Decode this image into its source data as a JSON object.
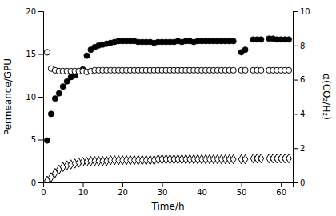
{
  "chart_data": {
    "type": "scatter",
    "xlabel": "Time/h",
    "ylabel": "Permeance/GPU",
    "y2label": "α(CO₂/H₂)",
    "xlim": [
      0,
      63
    ],
    "xticks": [
      0,
      10,
      20,
      30,
      40,
      50,
      60
    ],
    "ylim": [
      0,
      20
    ],
    "yticks": [
      0,
      5,
      10,
      15,
      20
    ],
    "y2lim": [
      0,
      10
    ],
    "y2ticks": [
      0,
      2,
      4,
      6,
      8,
      10
    ],
    "grid": false,
    "series": [
      {
        "marker": "circle",
        "color": "#000000",
        "x": [
          1,
          2,
          3,
          4,
          5,
          6,
          7,
          8,
          9,
          10,
          11,
          12,
          13,
          14,
          15,
          16,
          17,
          18,
          19,
          20,
          21,
          22,
          23,
          24,
          25,
          26,
          27,
          28,
          29,
          30,
          31,
          32,
          33,
          34,
          35,
          36,
          37,
          38,
          39,
          40,
          41,
          42,
          43,
          44,
          45,
          46,
          47,
          48,
          50,
          51,
          53,
          54,
          55,
          57,
          58,
          59,
          60,
          61,
          62
        ],
        "values": [
          4.9,
          8.0,
          9.8,
          10.4,
          11.2,
          11.8,
          12.3,
          12.5,
          13.0,
          13.2,
          14.8,
          15.5,
          15.8,
          16.0,
          16.1,
          16.2,
          16.3,
          16.4,
          16.5,
          16.5,
          16.5,
          16.5,
          16.5,
          16.4,
          16.4,
          16.4,
          16.4,
          16.3,
          16.4,
          16.4,
          16.4,
          16.4,
          16.4,
          16.5,
          16.4,
          16.5,
          16.5,
          16.4,
          16.5,
          16.5,
          16.5,
          16.5,
          16.5,
          16.5,
          16.5,
          16.5,
          16.5,
          16.5,
          15.2,
          15.5,
          16.7,
          16.7,
          16.7,
          16.8,
          16.8,
          16.7,
          16.7,
          16.7,
          16.7
        ]
      },
      {
        "marker": "open-circle",
        "color": "#000000",
        "x": [
          1,
          2,
          3,
          4,
          5,
          6,
          7,
          8,
          9,
          10,
          11,
          12,
          13,
          14,
          15,
          16,
          17,
          18,
          19,
          20,
          21,
          22,
          23,
          24,
          25,
          26,
          27,
          28,
          29,
          30,
          31,
          32,
          33,
          34,
          35,
          36,
          37,
          38,
          39,
          40,
          41,
          42,
          43,
          44,
          45,
          46,
          47,
          48,
          50,
          51,
          53,
          54,
          55,
          57,
          58,
          59,
          60,
          61,
          62
        ],
        "values": [
          15.2,
          13.3,
          13.1,
          13.0,
          13.0,
          13.0,
          13.0,
          13.0,
          13.0,
          13.0,
          12.9,
          13.0,
          13.1,
          13.1,
          13.1,
          13.1,
          13.1,
          13.1,
          13.1,
          13.1,
          13.1,
          13.1,
          13.1,
          13.1,
          13.1,
          13.1,
          13.1,
          13.1,
          13.1,
          13.1,
          13.1,
          13.1,
          13.1,
          13.1,
          13.1,
          13.1,
          13.1,
          13.1,
          13.1,
          13.1,
          13.1,
          13.1,
          13.1,
          13.1,
          13.1,
          13.1,
          13.1,
          13.1,
          13.1,
          13.1,
          13.1,
          13.1,
          13.1,
          13.1,
          13.1,
          13.1,
          13.1,
          13.1,
          13.1
        ]
      },
      {
        "marker": "diamond",
        "color": "#000000",
        "x": [
          1,
          2,
          3,
          4,
          5,
          6,
          7,
          8,
          9,
          10,
          11,
          12,
          13,
          14,
          15,
          16,
          17,
          18,
          19,
          20,
          21,
          22,
          23,
          24,
          25,
          26,
          27,
          28,
          29,
          30,
          31,
          32,
          33,
          34,
          35,
          36,
          37,
          38,
          39,
          40,
          41,
          42,
          43,
          44,
          45,
          46,
          47,
          48,
          50,
          51,
          53,
          54,
          55,
          57,
          58,
          59,
          60,
          61,
          62
        ],
        "values": [
          0.2,
          0.6,
          1.1,
          1.5,
          1.8,
          2.0,
          2.1,
          2.2,
          2.3,
          2.4,
          2.4,
          2.5,
          2.5,
          2.5,
          2.5,
          2.5,
          2.6,
          2.6,
          2.6,
          2.6,
          2.6,
          2.6,
          2.6,
          2.6,
          2.6,
          2.6,
          2.6,
          2.6,
          2.7,
          2.7,
          2.7,
          2.7,
          2.7,
          2.7,
          2.7,
          2.7,
          2.7,
          2.7,
          2.7,
          2.7,
          2.7,
          2.7,
          2.7,
          2.7,
          2.7,
          2.7,
          2.7,
          2.7,
          2.7,
          2.7,
          2.8,
          2.8,
          2.8,
          2.8,
          2.8,
          2.8,
          2.8,
          2.8,
          2.8
        ]
      }
    ]
  }
}
